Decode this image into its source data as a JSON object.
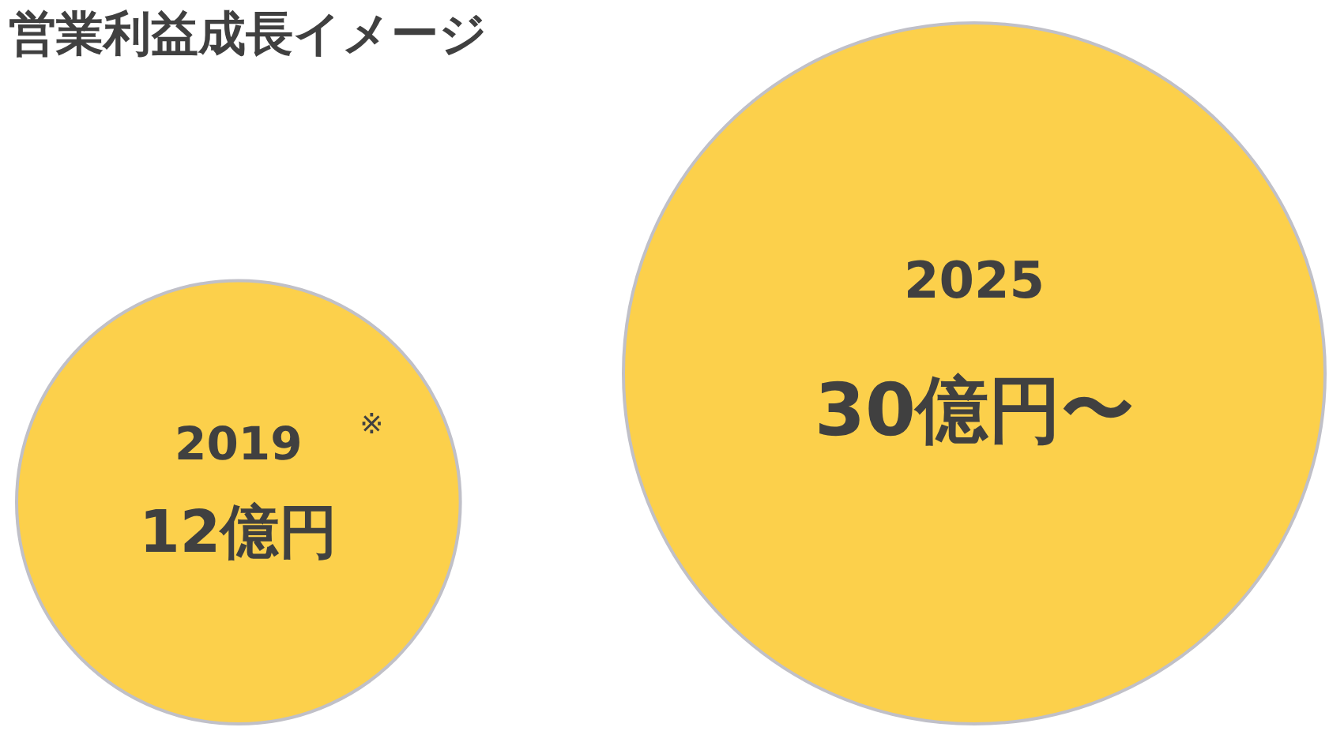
{
  "chart_data": {
    "type": "other",
    "title": "営業利益成長イメージ",
    "categories": [
      "2019",
      "2025"
    ],
    "values": [
      12,
      30
    ],
    "value_labels": [
      "12億円",
      "30億円〜"
    ],
    "color": "#fcd04b",
    "annotations": [
      "※"
    ]
  }
}
